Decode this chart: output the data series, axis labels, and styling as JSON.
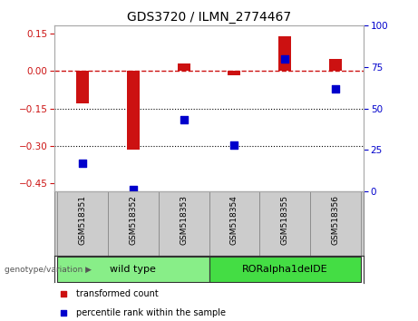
{
  "title": "GDS3720 / ILMN_2774467",
  "samples": [
    "GSM518351",
    "GSM518352",
    "GSM518353",
    "GSM518354",
    "GSM518355",
    "GSM518356"
  ],
  "transformed_count": [
    -0.13,
    -0.315,
    0.028,
    -0.018,
    0.138,
    0.048
  ],
  "percentile_rank": [
    17,
    1,
    43,
    28,
    80,
    62
  ],
  "ylim_left": [
    -0.48,
    0.18
  ],
  "ylim_right": [
    0,
    100
  ],
  "yticks_left": [
    -0.45,
    -0.3,
    -0.15,
    0.0,
    0.15
  ],
  "yticks_right": [
    0,
    25,
    50,
    75,
    100
  ],
  "bar_color": "#cc1111",
  "dot_color": "#0000cc",
  "hline_color": "#cc1111",
  "hline_style": "--",
  "dotline_values": [
    -0.15,
    -0.3
  ],
  "groups": [
    {
      "label": "wild type",
      "samples": [
        0,
        1,
        2
      ],
      "color": "#88ee88"
    },
    {
      "label": "RORalpha1delDE",
      "samples": [
        3,
        4,
        5
      ],
      "color": "#44dd44"
    }
  ],
  "group_label_prefix": "genotype/variation",
  "legend_items": [
    {
      "label": "transformed count",
      "color": "#cc1111"
    },
    {
      "label": "percentile rank within the sample",
      "color": "#0000cc"
    }
  ],
  "bar_width": 0.25,
  "dot_size": 28,
  "background_color": "#ffffff",
  "title_fontsize": 10,
  "tick_fontsize": 7.5,
  "sample_fontsize": 6.5,
  "legend_fontsize": 7,
  "group_fontsize": 8
}
